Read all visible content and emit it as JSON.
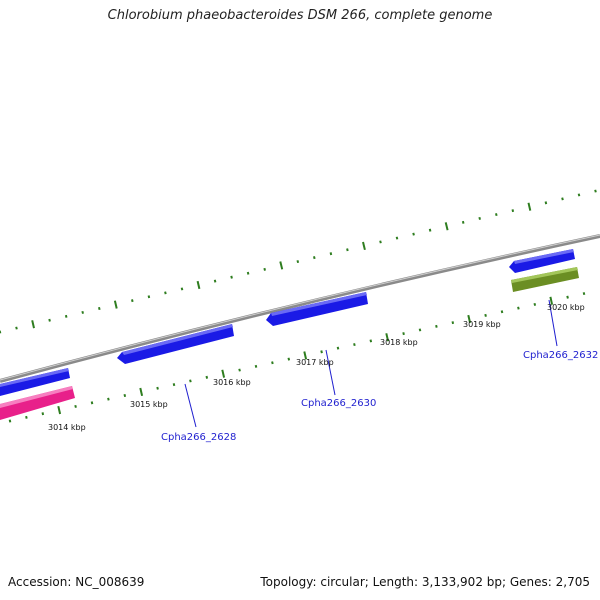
{
  "title": "Chlorobium phaeobacteroides DSM 266, complete genome",
  "footer": {
    "accession": "Accession: NC_008639",
    "summary": "Topology: circular; Length: 3,133,902 bp; Genes: 2,705"
  },
  "ticks": [
    {
      "label": "3014 kbp"
    },
    {
      "label": "3015 kbp"
    },
    {
      "label": "3016 kbp"
    },
    {
      "label": "3017 kbp"
    },
    {
      "label": "3018 kbp"
    },
    {
      "label": "3019 kbp"
    },
    {
      "label": "3020 kbp"
    }
  ],
  "genes": [
    {
      "label": "Cpha266_2628"
    },
    {
      "label": "Cpha266_2630"
    },
    {
      "label": "Cpha266_2632"
    }
  ],
  "colors": {
    "backbone": "#8a8a8a",
    "cds_forward": "#1a1ae6",
    "cds_reverse_pink": "#e8208a",
    "cds_reverse_green": "#6b8e23",
    "tick": "#2e7d1f",
    "label_line": "#1f1fcf"
  }
}
